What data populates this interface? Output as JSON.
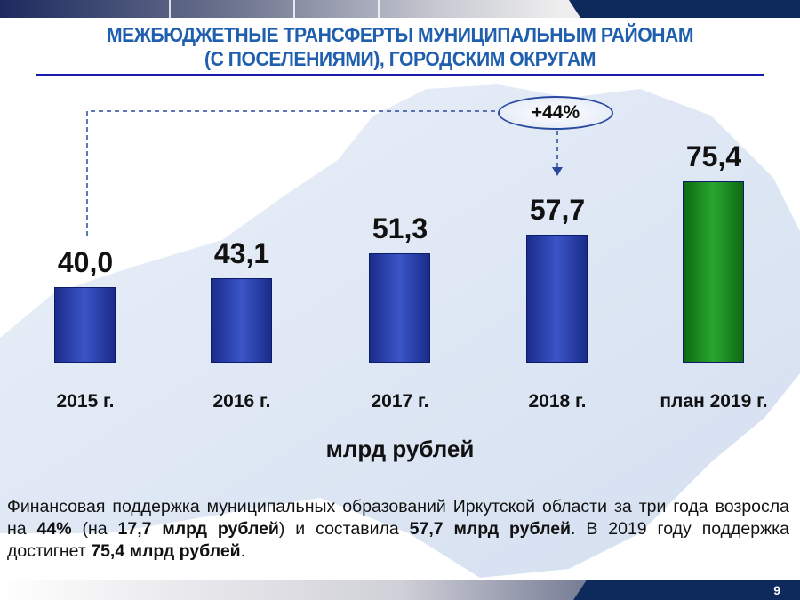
{
  "header": {
    "title_line1": "МЕЖБЮДЖЕТНЫЕ ТРАНСФЕРТЫ МУНИЦИПАЛЬНЫМ РАЙОНАМ",
    "title_line2": "(С ПОСЕЛЕНИЯМИ), ГОРОДСКИМ ОКРУГАМ"
  },
  "chart_data": {
    "type": "bar",
    "categories": [
      "2015 г.",
      "2016 г.",
      "2017 г.",
      "2018 г.",
      "план 2019 г."
    ],
    "values": [
      40.0,
      43.1,
      51.3,
      57.7,
      75.4
    ],
    "value_labels": [
      "40,0",
      "43,1",
      "51,3",
      "57,7",
      "75,4"
    ],
    "colors": [
      "#2a40b0",
      "#2a40b0",
      "#2a40b0",
      "#2a40b0",
      "#1e8c22"
    ],
    "unit_label": "млрд рублей",
    "annotation": "+44%",
    "annotation_from": "2015 г.",
    "annotation_to": "2018 г."
  },
  "note": {
    "p1": "Финансовая поддержка муниципальных образований Иркутской области за три года возросла на ",
    "b1": "44%",
    "p2": " (на ",
    "b2": "17,7 млрд рублей",
    "p3": ") и составила ",
    "b3": "57,7 млрд рублей",
    "p4": ". В 2019 году поддержка достигнет ",
    "b4": "75,4 млрд рублей",
    "p5": "."
  },
  "footer": {
    "page": "9"
  }
}
